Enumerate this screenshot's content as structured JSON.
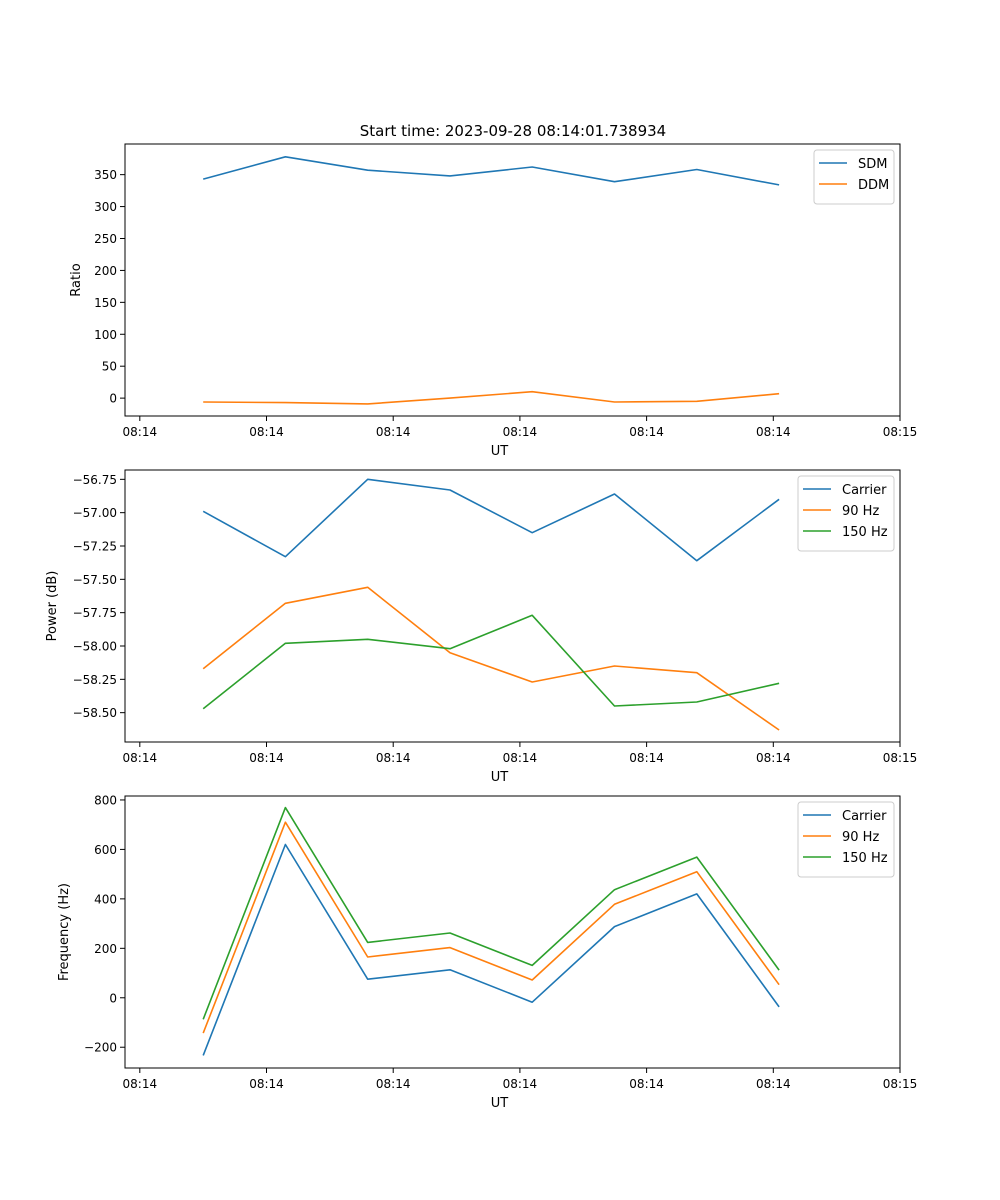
{
  "figure": {
    "title": "Start time: 2023-09-28 08:14:01.738934"
  },
  "colors": {
    "blue": "#1f77b4",
    "orange": "#ff7f0e",
    "green": "#2ca02c"
  },
  "chart_data": [
    {
      "type": "line",
      "title": "Start time: 2023-09-28 08:14:01.738934",
      "xlabel": "UT",
      "ylabel": "Ratio",
      "x": [
        0,
        1,
        2,
        3,
        4,
        5,
        6,
        7
      ],
      "x_ticks": {
        "values": [
          -0.77,
          0.77,
          2.31,
          3.85,
          5.39,
          6.93,
          8.47
        ],
        "labels": [
          "08:14",
          "08:14",
          "08:14",
          "08:14",
          "08:14",
          "08:14",
          "08:15"
        ]
      },
      "xlim": [
        -0.95,
        8.47
      ],
      "ylim": [
        -28,
        398
      ],
      "y_ticks": [
        0,
        50,
        100,
        150,
        200,
        250,
        300,
        350
      ],
      "legend": "top-right",
      "series": [
        {
          "name": "SDM",
          "color": "blue",
          "values": [
            343,
            378,
            357,
            348,
            362,
            339,
            358,
            334
          ]
        },
        {
          "name": "DDM",
          "color": "orange",
          "values": [
            -6,
            -7,
            -9,
            0,
            10,
            -6,
            -5,
            7
          ]
        }
      ]
    },
    {
      "type": "line",
      "title": "",
      "xlabel": "UT",
      "ylabel": "Power (dB)",
      "x": [
        0,
        1,
        2,
        3,
        4,
        5,
        6,
        7
      ],
      "x_ticks": {
        "values": [
          -0.77,
          0.77,
          2.31,
          3.85,
          5.39,
          6.93,
          8.47
        ],
        "labels": [
          "08:14",
          "08:14",
          "08:14",
          "08:14",
          "08:14",
          "08:14",
          "08:15"
        ]
      },
      "xlim": [
        -0.95,
        8.47
      ],
      "ylim": [
        -58.72,
        -56.68
      ],
      "y_ticks": [
        -58.5,
        -58.25,
        -58.0,
        -57.75,
        -57.5,
        -57.25,
        -57.0,
        -56.75
      ],
      "y_tick_labels": [
        "−58.50",
        "−58.25",
        "−58.00",
        "−57.75",
        "−57.50",
        "−57.25",
        "−57.00",
        "−56.75"
      ],
      "legend": "top-right",
      "series": [
        {
          "name": "Carrier",
          "color": "blue",
          "values": [
            -56.99,
            -57.33,
            -56.75,
            -56.83,
            -57.15,
            -56.86,
            -57.36,
            -56.9
          ]
        },
        {
          "name": "90 Hz",
          "color": "orange",
          "values": [
            -58.17,
            -57.68,
            -57.56,
            -58.05,
            -58.27,
            -58.15,
            -58.2,
            -58.63
          ]
        },
        {
          "name": "150 Hz",
          "color": "green",
          "values": [
            -58.47,
            -57.98,
            -57.95,
            -58.02,
            -57.77,
            -58.45,
            -58.42,
            -58.28
          ]
        }
      ]
    },
    {
      "type": "line",
      "title": "",
      "xlabel": "UT",
      "ylabel": "Frequency (Hz)",
      "x": [
        0,
        1,
        2,
        3,
        4,
        5,
        6,
        7
      ],
      "x_ticks": {
        "values": [
          -0.77,
          0.77,
          2.31,
          3.85,
          5.39,
          6.93,
          8.47
        ],
        "labels": [
          "08:14",
          "08:14",
          "08:14",
          "08:14",
          "08:14",
          "08:14",
          "08:15"
        ]
      },
      "xlim": [
        -0.95,
        8.47
      ],
      "ylim": [
        -284,
        816
      ],
      "y_ticks": [
        -200,
        0,
        200,
        400,
        600,
        800
      ],
      "y_tick_labels": [
        "−200",
        "0",
        "200",
        "400",
        "600",
        "800"
      ],
      "legend": "top-right",
      "series": [
        {
          "name": "Carrier",
          "color": "blue",
          "values": [
            -233,
            620,
            75,
            113,
            -18,
            288,
            420,
            -37
          ]
        },
        {
          "name": "90 Hz",
          "color": "orange",
          "values": [
            -143,
            710,
            165,
            203,
            72,
            378,
            510,
            53
          ]
        },
        {
          "name": "150 Hz",
          "color": "green",
          "values": [
            -87,
            769,
            224,
            262,
            131,
            437,
            569,
            112
          ]
        }
      ]
    }
  ]
}
